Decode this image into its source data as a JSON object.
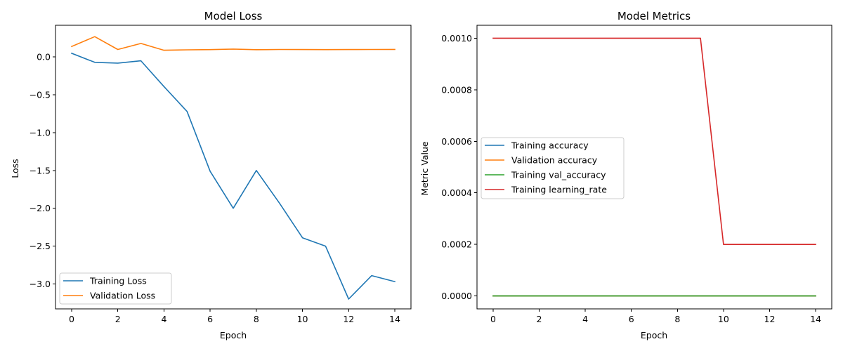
{
  "chart_data": [
    {
      "type": "line",
      "title": "Model Loss",
      "xlabel": "Epoch",
      "ylabel": "Loss",
      "xlim": [
        -0.7,
        14.7
      ],
      "ylim": [
        -3.33,
        0.42
      ],
      "xticks": [
        0,
        2,
        4,
        6,
        8,
        10,
        12,
        14
      ],
      "yticks": [
        0.0,
        -0.5,
        -1.0,
        -1.5,
        -2.0,
        -2.5,
        -3.0
      ],
      "ytick_labels": [
        "0.0",
        "−0.5",
        "−1.0",
        "−1.5",
        "−2.0",
        "−2.5",
        "−3.0"
      ],
      "legend_position": "lower-left",
      "x": [
        0,
        1,
        2,
        3,
        4,
        5,
        6,
        7,
        8,
        9,
        10,
        11,
        12,
        13,
        14
      ],
      "series": [
        {
          "name": "Training Loss",
          "color": "#1f77b4",
          "values": [
            0.05,
            -0.07,
            -0.08,
            -0.05,
            -0.39,
            -0.72,
            -1.51,
            -2.0,
            -1.5,
            -1.93,
            -2.39,
            -2.5,
            -3.2,
            -2.89,
            -2.97
          ]
        },
        {
          "name": "Validation Loss",
          "color": "#ff7f0e",
          "values": [
            0.14,
            0.27,
            0.1,
            0.18,
            0.09,
            0.095,
            0.098,
            0.105,
            0.097,
            0.1,
            0.099,
            0.098,
            0.099,
            0.1,
            0.101
          ]
        }
      ]
    },
    {
      "type": "line",
      "title": "Model Metrics",
      "xlabel": "Epoch",
      "ylabel": "Metric Value",
      "xlim": [
        -0.7,
        14.7
      ],
      "ylim": [
        -5e-05,
        0.00105
      ],
      "xticks": [
        0,
        2,
        4,
        6,
        8,
        10,
        12,
        14
      ],
      "yticks": [
        0.0,
        0.0002,
        0.0004,
        0.0006,
        0.0008,
        0.001
      ],
      "ytick_labels": [
        "0.0000",
        "0.0002",
        "0.0004",
        "0.0006",
        "0.0008",
        "0.0010"
      ],
      "legend_position": "center-left",
      "x": [
        0,
        1,
        2,
        3,
        4,
        5,
        6,
        7,
        8,
        9,
        10,
        11,
        12,
        13,
        14
      ],
      "series": [
        {
          "name": "Training accuracy",
          "color": "#1f77b4",
          "values": [
            0,
            0,
            0,
            0,
            0,
            0,
            0,
            0,
            0,
            0,
            0,
            0,
            0,
            0,
            0
          ]
        },
        {
          "name": "Validation accuracy",
          "color": "#ff7f0e",
          "values": [
            0,
            0,
            0,
            0,
            0,
            0,
            0,
            0,
            0,
            0,
            0,
            0,
            0,
            0,
            0
          ]
        },
        {
          "name": "Training val_accuracy",
          "color": "#2ca02c",
          "values": [
            0,
            0,
            0,
            0,
            0,
            0,
            0,
            0,
            0,
            0,
            0,
            0,
            0,
            0,
            0
          ]
        },
        {
          "name": "Training learning_rate",
          "color": "#d62728",
          "values": [
            0.001,
            0.001,
            0.001,
            0.001,
            0.001,
            0.001,
            0.001,
            0.001,
            0.001,
            0.001,
            0.0002,
            0.0002,
            0.0002,
            0.0002,
            0.0002
          ]
        }
      ]
    }
  ]
}
